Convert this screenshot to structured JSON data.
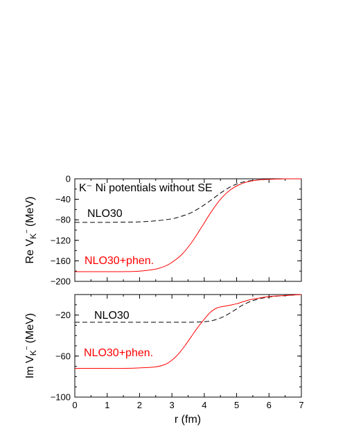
{
  "chart_data": [
    {
      "type": "line",
      "title": "",
      "annotation": "K⁻ Ni potentials without SE",
      "ylabel": {
        "main": "Re V",
        "sub": "K",
        "sup": "−",
        "unit": "(MeV)"
      },
      "xlabel": "",
      "xlim": [
        0,
        7
      ],
      "ylim": [
        -200,
        0
      ],
      "yticks": [
        0,
        -40,
        -80,
        -120,
        -160,
        -200
      ],
      "yminor_step": 20,
      "xminor_step": 0.5,
      "grid": false,
      "series": [
        {
          "name": "NLO30",
          "color": "#000000",
          "dash": "dashed",
          "x": [
            0,
            0.5,
            1,
            1.5,
            2,
            2.5,
            3,
            3.3,
            3.6,
            3.9,
            4.2,
            4.5,
            4.8,
            5.1,
            5.4,
            5.7,
            6.0,
            6.5,
            7
          ],
          "y": [
            -85,
            -85,
            -85,
            -84.5,
            -84,
            -82,
            -78,
            -73,
            -66,
            -55,
            -42,
            -28,
            -16,
            -8,
            -4,
            -2,
            -1,
            0,
            0
          ]
        },
        {
          "name": "NLO30+phen.",
          "color": "#ff0000",
          "dash": "solid",
          "x": [
            0,
            0.5,
            1,
            1.5,
            2,
            2.5,
            2.8,
            3.0,
            3.3,
            3.6,
            3.9,
            4.2,
            4.5,
            4.8,
            5.1,
            5.4,
            5.7,
            6.0,
            6.5,
            7
          ],
          "y": [
            -181,
            -181,
            -181,
            -181,
            -180,
            -176,
            -170,
            -163,
            -148,
            -125,
            -96,
            -66,
            -40,
            -22,
            -11,
            -5,
            -2,
            -1,
            0,
            0
          ]
        }
      ]
    },
    {
      "type": "line",
      "title": "",
      "ylabel": {
        "main": "Im V",
        "sub": "K",
        "sup": "−",
        "unit": "(MeV)"
      },
      "xlabel": "r (fm)",
      "xlim": [
        0,
        7
      ],
      "ylim": [
        -100,
        0
      ],
      "yticks": [
        -20,
        -60,
        -100
      ],
      "xticks": [
        0,
        1,
        2,
        3,
        4,
        5,
        6,
        7
      ],
      "yminor_step": 10,
      "xminor_step": 0.5,
      "grid": false,
      "series": [
        {
          "name": "NLO30",
          "color": "#000000",
          "dash": "dashed",
          "x": [
            0,
            1,
            2,
            3,
            3.5,
            4,
            4.3,
            4.6,
            4.9,
            5.2,
            5.5,
            5.8,
            6.1,
            6.5,
            7
          ],
          "y": [
            -27,
            -27,
            -27,
            -27,
            -27,
            -26.5,
            -25,
            -21.5,
            -16,
            -10,
            -6,
            -3.5,
            -2,
            -1,
            0
          ]
        },
        {
          "name": "NLO30+phen.",
          "color": "#ff0000",
          "dash": "solid",
          "x": [
            0,
            0.5,
            1,
            1.5,
            2,
            2.5,
            2.8,
            3.0,
            3.2,
            3.4,
            3.6,
            3.8,
            4.0,
            4.2,
            4.4,
            4.7,
            5.0,
            5.3,
            5.6,
            6.0,
            6.5,
            7
          ],
          "y": [
            -72,
            -72,
            -72,
            -72,
            -71.5,
            -70.5,
            -68,
            -64,
            -58,
            -50,
            -41,
            -32,
            -24,
            -17,
            -13,
            -11,
            -9,
            -6,
            -4,
            -2,
            -1,
            0
          ]
        }
      ]
    }
  ]
}
